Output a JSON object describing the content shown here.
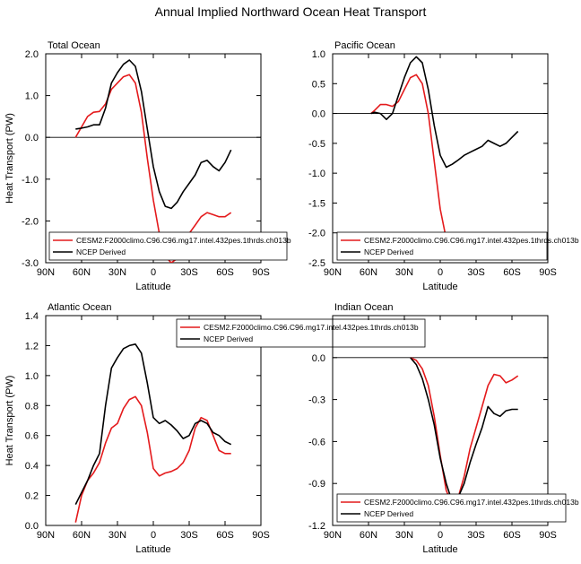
{
  "title": "Annual Implied Northward Ocean Heat Transport",
  "colors": {
    "model": "#e41a1c",
    "obs": "#000000"
  },
  "chart_data": [
    {
      "type": "line",
      "title": "Total Ocean",
      "ylabel": "Heat Transport (PW)",
      "xlabel": "Latitude",
      "xlim": [
        90,
        -90
      ],
      "ylim": [
        -3.0,
        2.0
      ],
      "xticks": [
        90,
        60,
        30,
        0,
        -30,
        -60,
        -90
      ],
      "xtick_labels": [
        "90N",
        "60N",
        "30N",
        "0",
        "30S",
        "60S",
        "90S"
      ],
      "yticks": [
        -3.0,
        -2.0,
        -1.0,
        0.0,
        1.0,
        2.0
      ],
      "ytick_labels": [
        "-3.0",
        "-2.0",
        "-1.0",
        "0.0",
        "1.0",
        "2.0"
      ],
      "zero_line": true,
      "legend": "bottom",
      "series": [
        {
          "name": "CESM2.F2000climo.C96.C96.mg17.intel.432pes.1thrds.ch013b",
          "x": [
            65,
            60,
            55,
            50,
            45,
            40,
            35,
            30,
            25,
            20,
            15,
            10,
            5,
            0,
            -5,
            -10,
            -15,
            -20,
            -25,
            -30,
            -35,
            -40,
            -45,
            -50,
            -55,
            -60,
            -65
          ],
          "y": [
            0.0,
            0.25,
            0.5,
            0.6,
            0.62,
            0.8,
            1.15,
            1.3,
            1.45,
            1.5,
            1.3,
            0.6,
            -0.5,
            -1.5,
            -2.3,
            -2.85,
            -3.0,
            -2.9,
            -2.6,
            -2.3,
            -2.1,
            -1.9,
            -1.8,
            -1.85,
            -1.9,
            -1.9,
            -1.8
          ]
        },
        {
          "name": "NCEP Derived",
          "x": [
            65,
            60,
            55,
            50,
            45,
            40,
            35,
            30,
            25,
            20,
            15,
            10,
            5,
            0,
            -5,
            -10,
            -15,
            -20,
            -25,
            -30,
            -35,
            -40,
            -45,
            -50,
            -55,
            -60,
            -65
          ],
          "y": [
            0.2,
            0.22,
            0.25,
            0.3,
            0.3,
            0.7,
            1.3,
            1.55,
            1.75,
            1.85,
            1.7,
            1.1,
            0.2,
            -0.7,
            -1.3,
            -1.65,
            -1.7,
            -1.55,
            -1.3,
            -1.1,
            -0.9,
            -0.6,
            -0.55,
            -0.7,
            -0.8,
            -0.6,
            -0.3
          ]
        }
      ]
    },
    {
      "type": "line",
      "title": "Pacific Ocean",
      "ylabel": "",
      "xlabel": "Latitude",
      "xlim": [
        90,
        -90
      ],
      "ylim": [
        -2.5,
        1.0
      ],
      "xticks": [
        90,
        60,
        30,
        0,
        -30,
        -60,
        -90
      ],
      "xtick_labels": [
        "90N",
        "60N",
        "30N",
        "0",
        "30S",
        "60S",
        "90S"
      ],
      "yticks": [
        -2.5,
        -2.0,
        -1.5,
        -1.0,
        -0.5,
        0.0,
        0.5,
        1.0
      ],
      "ytick_labels": [
        "-2.5",
        "-2.0",
        "-1.5",
        "-1.0",
        "-0.5",
        "0.0",
        "0.5",
        "1.0"
      ],
      "zero_line": true,
      "legend": "bottom",
      "series": [
        {
          "name": "CESM2.F2000climo.C96.C96.mg17.intel.432pes.1thrds.ch013b",
          "x": [
            58,
            55,
            50,
            45,
            40,
            35,
            30,
            25,
            20,
            15,
            10,
            5,
            0,
            -5,
            -10,
            -15,
            -20,
            -25,
            -30,
            -35,
            -40,
            -45,
            -50,
            -55,
            -60,
            -65
          ],
          "y": [
            0.0,
            0.05,
            0.15,
            0.15,
            0.12,
            0.2,
            0.4,
            0.6,
            0.65,
            0.5,
            0.0,
            -0.8,
            -1.6,
            -2.1,
            -2.3,
            -2.28,
            -2.25,
            -2.25,
            -2.25,
            -2.28,
            -2.32,
            -2.38,
            -2.42,
            -2.38,
            -2.3,
            -2.2
          ]
        },
        {
          "name": "NCEP Derived",
          "x": [
            58,
            55,
            50,
            45,
            40,
            35,
            30,
            25,
            20,
            15,
            10,
            5,
            0,
            -5,
            -10,
            -15,
            -20,
            -25,
            -30,
            -35,
            -40,
            -45,
            -50,
            -55,
            -60,
            -65
          ],
          "y": [
            0.0,
            0.02,
            0.0,
            -0.1,
            0.0,
            0.3,
            0.6,
            0.85,
            0.95,
            0.85,
            0.4,
            -0.2,
            -0.7,
            -0.9,
            -0.85,
            -0.78,
            -0.7,
            -0.65,
            -0.6,
            -0.55,
            -0.45,
            -0.5,
            -0.55,
            -0.5,
            -0.4,
            -0.3
          ]
        }
      ]
    },
    {
      "type": "line",
      "title": "Atlantic Ocean",
      "ylabel": "Heat Transport (PW)",
      "xlabel": "Latitude",
      "xlim": [
        90,
        -90
      ],
      "ylim": [
        0.0,
        1.4
      ],
      "xticks": [
        90,
        60,
        30,
        0,
        -30,
        -60,
        -90
      ],
      "xtick_labels": [
        "90N",
        "60N",
        "30N",
        "0",
        "30S",
        "60S",
        "90S"
      ],
      "yticks": [
        0.0,
        0.2,
        0.4,
        0.6,
        0.8,
        1.0,
        1.2,
        1.4
      ],
      "ytick_labels": [
        "0.0",
        "0.2",
        "0.4",
        "0.6",
        "0.8",
        "1.0",
        "1.2",
        "1.4"
      ],
      "zero_line": false,
      "legend": "top-center",
      "series": [
        {
          "name": "CESM2.F2000climo.C96.C96.mg17.intel.432pes.1thrds.ch013b",
          "x": [
            65,
            60,
            55,
            50,
            45,
            40,
            35,
            30,
            25,
            20,
            15,
            10,
            5,
            0,
            -5,
            -10,
            -15,
            -20,
            -25,
            -30,
            -35,
            -40,
            -45,
            -50,
            -55,
            -60,
            -65
          ],
          "y": [
            0.02,
            0.2,
            0.3,
            0.35,
            0.42,
            0.55,
            0.65,
            0.68,
            0.78,
            0.84,
            0.86,
            0.8,
            0.62,
            0.38,
            0.33,
            0.35,
            0.36,
            0.38,
            0.42,
            0.5,
            0.65,
            0.72,
            0.7,
            0.6,
            0.5,
            0.48,
            0.48
          ]
        },
        {
          "name": "NCEP Derived",
          "x": [
            65,
            60,
            55,
            50,
            45,
            40,
            35,
            30,
            25,
            20,
            15,
            10,
            5,
            0,
            -5,
            -10,
            -15,
            -20,
            -25,
            -30,
            -35,
            -40,
            -45,
            -50,
            -55,
            -60,
            -65
          ],
          "y": [
            0.14,
            0.22,
            0.3,
            0.4,
            0.48,
            0.8,
            1.05,
            1.12,
            1.18,
            1.2,
            1.21,
            1.15,
            0.95,
            0.72,
            0.68,
            0.7,
            0.67,
            0.63,
            0.58,
            0.6,
            0.68,
            0.7,
            0.68,
            0.62,
            0.6,
            0.56,
            0.54
          ]
        }
      ]
    },
    {
      "type": "line",
      "title": "Indian Ocean",
      "ylabel": "",
      "xlabel": "Latitude",
      "xlim": [
        90,
        -90
      ],
      "ylim": [
        -1.2,
        0.3
      ],
      "xticks": [
        90,
        60,
        30,
        0,
        -30,
        -60,
        -90
      ],
      "xtick_labels": [
        "90N",
        "60N",
        "30N",
        "0",
        "30S",
        "60S",
        "90S"
      ],
      "yticks": [
        -1.2,
        -0.9,
        -0.6,
        -0.3,
        0.0
      ],
      "ytick_labels": [
        "-1.2",
        "-0.9",
        "-0.6",
        "-0.3",
        "0.0"
      ],
      "zero_line": true,
      "legend": "bottom",
      "series": [
        {
          "name": "CESM2.F2000climo.C96.C96.mg17.intel.432pes.1thrds.ch013b",
          "x": [
            25,
            20,
            15,
            10,
            5,
            0,
            -5,
            -10,
            -12,
            -15,
            -20,
            -25,
            -30,
            -35,
            -40,
            -45,
            -50,
            -55,
            -60,
            -65
          ],
          "y": [
            0.0,
            -0.02,
            -0.08,
            -0.2,
            -0.42,
            -0.7,
            -0.95,
            -1.05,
            -1.04,
            -1.0,
            -0.85,
            -0.65,
            -0.5,
            -0.35,
            -0.2,
            -0.12,
            -0.13,
            -0.18,
            -0.16,
            -0.13
          ]
        },
        {
          "name": "NCEP Derived",
          "x": [
            25,
            20,
            15,
            10,
            5,
            0,
            -5,
            -10,
            -12,
            -15,
            -20,
            -25,
            -30,
            -35,
            -40,
            -45,
            -50,
            -55,
            -60,
            -65
          ],
          "y": [
            0.0,
            -0.05,
            -0.15,
            -0.3,
            -0.48,
            -0.72,
            -0.9,
            -1.03,
            -1.05,
            -1.0,
            -0.9,
            -0.75,
            -0.62,
            -0.5,
            -0.35,
            -0.4,
            -0.42,
            -0.38,
            -0.37,
            -0.37
          ]
        }
      ]
    }
  ]
}
